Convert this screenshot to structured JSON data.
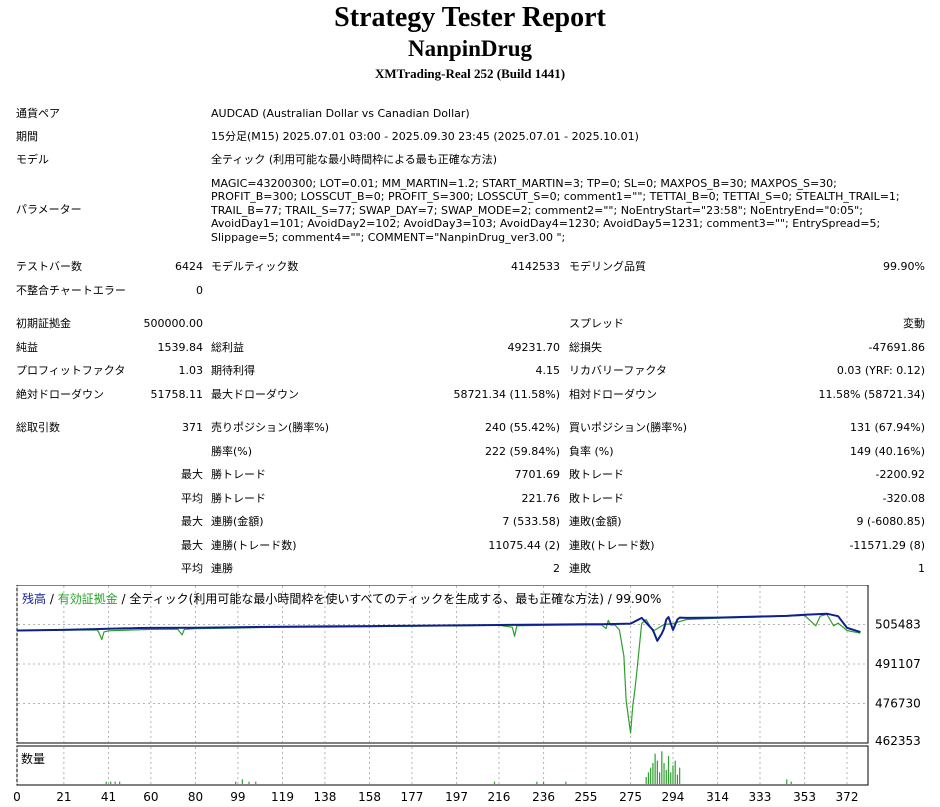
{
  "report": {
    "title": "Strategy Tester Report",
    "ea_name": "NanpinDrug",
    "broker": "XMTrading-Real 252 (Build 1441)"
  },
  "info": {
    "symbol_label": "通貨ペア",
    "symbol_value": "AUDCAD (Australian Dollar vs Canadian Dollar)",
    "period_label": "期間",
    "period_value": "15分足(M15) 2025.07.01 03:00 - 2025.09.30 23:45 (2025.07.01 - 2025.10.01)",
    "model_label": "モデル",
    "model_value": "全ティック (利用可能な最小時間枠による最も正確な方法)",
    "params_label": "パラメーター",
    "params_value": "MAGIC=43200300; LOT=0.01; MM_MARTIN=1.2; START_MARTIN=3; TP=0; SL=0; MAXPOS_B=30; MAXPOS_S=30; PROFIT_B=300; LOSSCUT_B=0; PROFIT_S=300; LOSSCUT_S=0; comment1=\"\"; TETTAI_B=0; TETTAI_S=0; STEALTH_TRAIL=1; TRAIL_B=77; TRAIL_S=77; SWAP_DAY=7; SWAP_MODE=2; comment2=\"\"; NoEntryStart=\"23:58\"; NoEntryEnd=\"0:05\"; AvoidDay1=101; AvoidDay2=102; AvoidDay3=103; AvoidDay4=1230; AvoidDay5=1231; comment3=\"\"; EntrySpread=5; Slippage=5; comment4=\"\"; COMMENT=\"NanpinDrug_ver3.00 \";"
  },
  "stats": {
    "bars_label": "テストバー数",
    "bars_value": "6424",
    "ticks_label": "モデルティック数",
    "ticks_value": "4142533",
    "quality_label": "モデリング品質",
    "quality_value": "99.90%",
    "errors_label": "不整合チャートエラー",
    "errors_value": "0",
    "deposit_label": "初期証拠金",
    "deposit_value": "500000.00",
    "spread_label": "スプレッド",
    "spread_value": "変動",
    "net_label": "純益",
    "net_value": "1539.84",
    "gross_profit_label": "総利益",
    "gross_profit_value": "49231.70",
    "gross_loss_label": "総損失",
    "gross_loss_value": "-47691.86",
    "pf_label": "プロフィットファクタ",
    "pf_value": "1.03",
    "expected_label": "期待利得",
    "expected_value": "4.15",
    "recovery_label": "リカバリーファクタ",
    "recovery_value": "0.03 (YRF: 0.12)",
    "abs_dd_label": "絶対ドローダウン",
    "abs_dd_value": "51758.11",
    "max_dd_label": "最大ドローダウン",
    "max_dd_value": "58721.34 (11.58%)",
    "rel_dd_label": "相対ドローダウン",
    "rel_dd_value": "11.58% (58721.34)",
    "total_trades_label": "総取引数",
    "total_trades_value": "371",
    "short_label": "売りポジション(勝率%)",
    "short_value": "240 (55.42%)",
    "long_label": "買いポジション(勝率%)",
    "long_value": "131 (67.94%)",
    "winrate_label": "勝率(%)",
    "winrate_value": "222 (59.84%)",
    "lossrate_label": "負率 (%)",
    "lossrate_value": "149 (40.16%)",
    "max_label": "最大",
    "avg_label": "平均",
    "win_trade_label": "勝トレード",
    "loss_trade_label": "敗トレード",
    "max_win_value": "7701.69",
    "max_loss_value": "-2200.92",
    "avg_win_value": "221.76",
    "avg_loss_value": "-320.08",
    "consec_win_amt_label": "連勝(金額)",
    "consec_win_amt_value": "7 (533.58)",
    "consec_loss_amt_label": "連敗(金額)",
    "consec_loss_amt_value": "9 (-6080.85)",
    "consec_win_cnt_label": "連勝(トレード数)",
    "consec_win_cnt_value": "11075.44 (2)",
    "consec_loss_cnt_label": "連敗(トレード数)",
    "consec_loss_cnt_value": "-11571.29 (8)",
    "avg_consec_win_label": "連勝",
    "avg_consec_win_value": "2",
    "avg_consec_loss_label": "連敗",
    "avg_consec_loss_value": "1"
  },
  "chart_data": {
    "type": "line",
    "legend": {
      "balance": "残高",
      "sep1": " / ",
      "equity": "有効証拠金",
      "sep2": " / ",
      "rest": "全ティック(利用可能な最小時間枠を使いすべてのティックを生成する、最も正確な方法) / 99.90%"
    },
    "colors": {
      "balance": "#0f1f8c",
      "equity": "#2ca02c",
      "volume": "#2ca02c",
      "grid": "#b4b4b4"
    },
    "yticks": [
      505483,
      491107,
      476730,
      462353
    ],
    "ylim": [
      462353,
      519860
    ],
    "xticks": [
      0,
      21,
      41,
      60,
      80,
      99,
      119,
      138,
      158,
      177,
      197,
      216,
      236,
      255,
      275,
      294,
      314,
      333,
      353,
      372
    ],
    "xlim": [
      0,
      372
    ],
    "volume_label": "数量",
    "series": [
      {
        "name": "残高",
        "points": [
          [
            0,
            503300
          ],
          [
            20,
            503500
          ],
          [
            35,
            503800
          ],
          [
            41,
            503900
          ],
          [
            55,
            504200
          ],
          [
            60,
            504250
          ],
          [
            80,
            504300
          ],
          [
            99,
            504500
          ],
          [
            119,
            504700
          ],
          [
            138,
            504800
          ],
          [
            158,
            504900
          ],
          [
            177,
            505000
          ],
          [
            197,
            505150
          ],
          [
            216,
            505300
          ],
          [
            236,
            505450
          ],
          [
            255,
            505550
          ],
          [
            262,
            505600
          ],
          [
            270,
            505700
          ],
          [
            275,
            505800
          ],
          [
            280,
            507900
          ],
          [
            285,
            503500
          ],
          [
            287,
            499500
          ],
          [
            289,
            502200
          ],
          [
            290,
            504000
          ],
          [
            291,
            507300
          ],
          [
            292,
            508200
          ],
          [
            294,
            503500
          ],
          [
            296,
            507300
          ],
          [
            297,
            508000
          ],
          [
            300,
            507900
          ],
          [
            314,
            508000
          ],
          [
            333,
            508400
          ],
          [
            345,
            508600
          ],
          [
            353,
            509000
          ],
          [
            363,
            509400
          ],
          [
            368,
            508500
          ],
          [
            372,
            504300
          ],
          [
            378,
            502700
          ]
        ]
      },
      {
        "name": "有効証拠金",
        "points": [
          [
            0,
            503200
          ],
          [
            20,
            503400
          ],
          [
            36,
            503500
          ],
          [
            37,
            502000
          ],
          [
            38,
            500000
          ],
          [
            39,
            502800
          ],
          [
            41,
            503200
          ],
          [
            60,
            503700
          ],
          [
            72,
            503800
          ],
          [
            74,
            501700
          ],
          [
            75,
            503700
          ],
          [
            80,
            504000
          ],
          [
            99,
            504200
          ],
          [
            119,
            504500
          ],
          [
            138,
            504500
          ],
          [
            158,
            504700
          ],
          [
            177,
            504900
          ],
          [
            197,
            505000
          ],
          [
            216,
            505200
          ],
          [
            222,
            504500
          ],
          [
            223,
            501200
          ],
          [
            224,
            505000
          ],
          [
            236,
            505200
          ],
          [
            255,
            505350
          ],
          [
            262,
            505350
          ],
          [
            264,
            504000
          ],
          [
            265,
            507000
          ],
          [
            266,
            505300
          ],
          [
            268,
            505300
          ],
          [
            270,
            503500
          ],
          [
            272,
            494000
          ],
          [
            273,
            478000
          ],
          [
            274,
            472000
          ],
          [
            275,
            466000
          ],
          [
            276,
            476000
          ],
          [
            277,
            482000
          ],
          [
            278,
            490000
          ],
          [
            279,
            498000
          ],
          [
            280,
            505800
          ],
          [
            282,
            507300
          ],
          [
            285,
            503000
          ],
          [
            290,
            505500
          ],
          [
            294,
            505800
          ],
          [
            300,
            507300
          ],
          [
            314,
            507800
          ],
          [
            333,
            508200
          ],
          [
            353,
            508800
          ],
          [
            358,
            505000
          ],
          [
            360,
            508500
          ],
          [
            363,
            509200
          ],
          [
            366,
            505000
          ],
          [
            368,
            506000
          ],
          [
            372,
            503300
          ],
          [
            378,
            502300
          ]
        ]
      }
    ],
    "volume": [
      [
        40,
        1
      ],
      [
        42,
        1
      ],
      [
        44,
        1
      ],
      [
        46,
        1
      ],
      [
        98,
        1
      ],
      [
        101,
        2
      ],
      [
        104,
        1
      ],
      [
        107,
        1
      ],
      [
        214,
        1
      ],
      [
        233,
        1
      ],
      [
        236,
        1
      ],
      [
        246,
        1
      ],
      [
        282,
        3
      ],
      [
        283,
        5
      ],
      [
        284,
        7
      ],
      [
        285,
        9
      ],
      [
        286,
        13
      ],
      [
        287,
        10
      ],
      [
        288,
        5
      ],
      [
        289,
        14
      ],
      [
        290,
        9
      ],
      [
        291,
        6
      ],
      [
        292,
        12
      ],
      [
        293,
        5
      ],
      [
        294,
        8
      ],
      [
        295,
        10
      ],
      [
        296,
        4
      ],
      [
        297,
        7
      ],
      [
        345,
        2
      ],
      [
        347,
        1
      ]
    ],
    "volume_max": 15
  }
}
